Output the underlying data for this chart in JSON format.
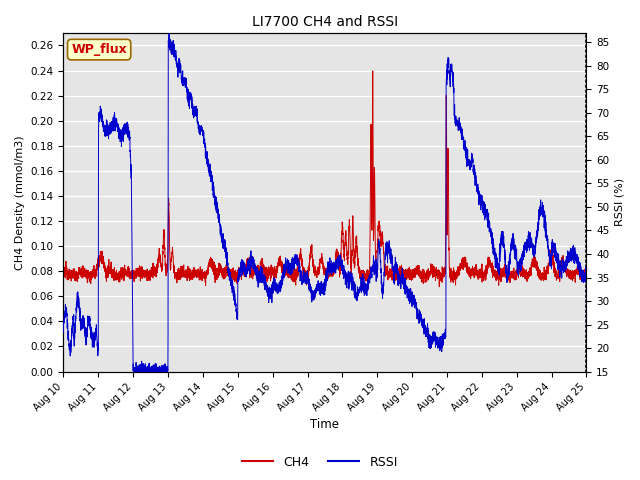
{
  "title": "LI7700 CH4 and RSSI",
  "xlabel": "Time",
  "ylabel_left": "CH4 Density (mmol/m3)",
  "ylabel_right": "RSSI (%)",
  "annotation": "WP_flux",
  "x_tick_labels": [
    "Aug 10",
    "Aug 11",
    "Aug 12",
    "Aug 13",
    "Aug 14",
    "Aug 15",
    "Aug 16",
    "Aug 17",
    "Aug 18",
    "Aug 19",
    "Aug 20",
    "Aug 21",
    "Aug 22",
    "Aug 23",
    "Aug 24",
    "Aug 25"
  ],
  "ylim_left": [
    0.0,
    0.27
  ],
  "ylim_right": [
    15,
    87
  ],
  "yticks_left": [
    0.0,
    0.02,
    0.04,
    0.06,
    0.08,
    0.1,
    0.12,
    0.14,
    0.16,
    0.18,
    0.2,
    0.22,
    0.24,
    0.26
  ],
  "yticks_right": [
    15,
    20,
    25,
    30,
    35,
    40,
    45,
    50,
    55,
    60,
    65,
    70,
    75,
    80,
    85
  ],
  "ch4_color": "#cc0000",
  "rssi_color": "#0000cc",
  "bg_color": "#e5e5e5",
  "annotation_bg": "#ffffcc",
  "annotation_border": "#996600",
  "annotation_text_color": "#cc0000",
  "legend_ch4": "CH4",
  "legend_rssi": "RSSI",
  "figsize": [
    6.4,
    4.8
  ],
  "dpi": 100
}
